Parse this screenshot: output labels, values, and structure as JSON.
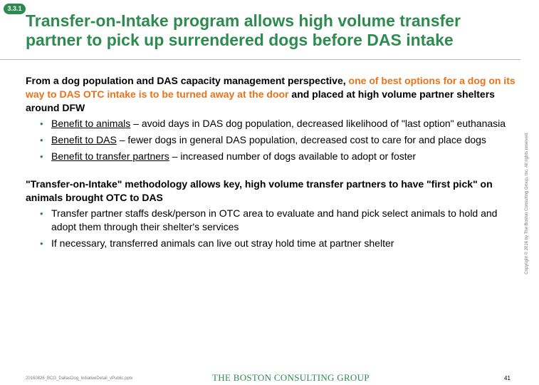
{
  "badge": "3.3.1",
  "title": "Transfer-on-Intake program allows high volume transfer partner to pick up surrendered dogs before DAS intake",
  "section1": {
    "lead_start": "From a dog population and DAS capacity management perspective,",
    "lead_highlight": "one of best options for a dog on its way to DAS OTC intake is to be turned away at the door",
    "lead_end": "and placed at high volume partner shelters around DFW",
    "bullets": [
      {
        "term": "Benefit to animals",
        "text": "– avoid days in DAS dog population, decreased likelihood of \"last option\" euthanasia"
      },
      {
        "term": "Benefit to DAS",
        "text": "– fewer dogs in general DAS population, decreased cost to care for and place dogs"
      },
      {
        "term": "Benefit to transfer partners",
        "text": "– increased number of dogs available to adopt or foster"
      }
    ]
  },
  "section2": {
    "lead": "\"Transfer-on-Intake\" methodology allows key, high volume transfer partners to have \"first pick\" on animals brought OTC to DAS",
    "bullets": [
      "Transfer partner staffs desk/person in OTC area to evaluate and hand pick select animals to hold and adopt them through their shelter's services",
      "If necessary, transferred animals can live out stray hold time at partner shelter"
    ]
  },
  "bullet_glyph": "•",
  "footer": {
    "file": "20160826_BCG_DallasDog_InitiativeDetail_vPublic.pptx",
    "logo": "THE BOSTON CONSULTING GROUP",
    "page": "41"
  },
  "copyright": "Copyright © 2016 by The Boston Consulting Group, Inc. All rights reserved.",
  "colors": {
    "accent_green": "#2e8b50",
    "highlight_orange": "#e8731a"
  }
}
